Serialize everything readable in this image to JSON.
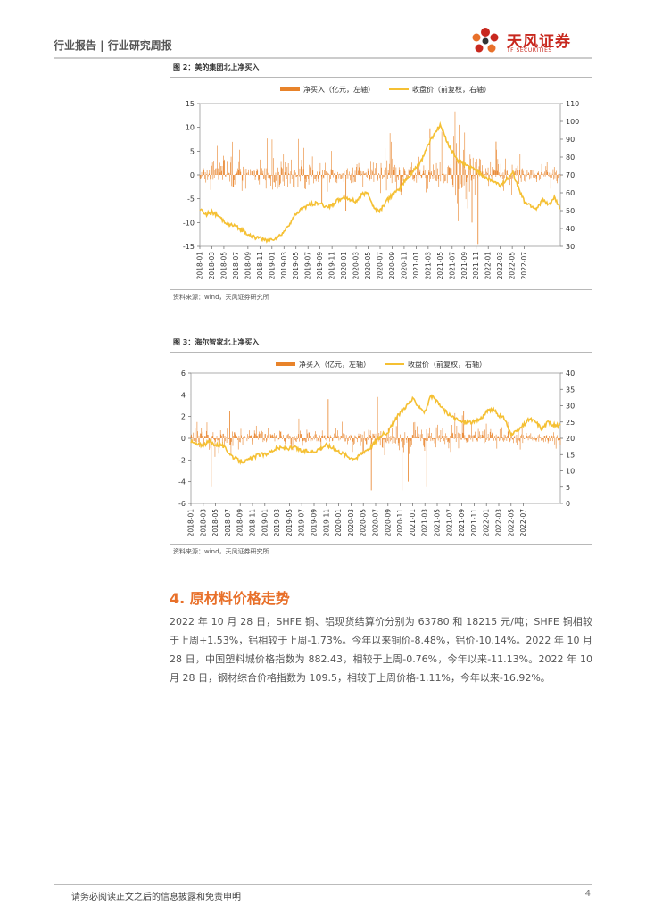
{
  "header": {
    "title": "行业报告 | 行业研究周报",
    "logo_text": "天风证券",
    "logo_sub": "TF SECURITIES"
  },
  "figures": [
    {
      "title": "图 2：美的集团北上净买入",
      "source": "资料来源：wind，天风证券研究所"
    },
    {
      "title": "图 3：海尔智家北上净买入",
      "source": "资料来源：wind，天风证券研究所"
    }
  ],
  "chart_data": [
    {
      "type": "bar",
      "title": "图 2：美的集团北上净买入",
      "legend_placement": "top-center",
      "grid": false,
      "x_ticks": [
        "2018-01",
        "2018-03",
        "2018-05",
        "2018-07",
        "2018-09",
        "2018-11",
        "2019-01",
        "2019-03",
        "2019-05",
        "2019-07",
        "2019-09",
        "2019-11",
        "2020-01",
        "2020-03",
        "2020-05",
        "2020-07",
        "2020-09",
        "2020-11",
        "2021-01",
        "2021-03",
        "2021-05",
        "2021-07",
        "2021-09",
        "2021-11",
        "2022-01",
        "2022-03",
        "2022-05",
        "2022-07"
      ],
      "y_left": {
        "min": -15,
        "max": 15,
        "ticks": [
          -15,
          -10,
          -5,
          0,
          5,
          10,
          15
        ]
      },
      "y_right": {
        "min": 30,
        "max": 110,
        "ticks": [
          30,
          40,
          50,
          60,
          70,
          80,
          90,
          100,
          110
        ]
      },
      "series": [
        {
          "name": "净买入（亿元，左轴）",
          "axis": "left",
          "kind": "bar",
          "color": "#e8832a",
          "amplitude_by_month": [
            3,
            3.5,
            4,
            4.5,
            5,
            5,
            4,
            3,
            3.5,
            4,
            4.5,
            5,
            5,
            4.5,
            4,
            4.5,
            5,
            5,
            4,
            3,
            3.5,
            3.5,
            3.5,
            3,
            3,
            2.5,
            2.5,
            2.5,
            3,
            4,
            5,
            6,
            6,
            5,
            4,
            3.5,
            3,
            3,
            4,
            5,
            6,
            7,
            9,
            8,
            6,
            5,
            4.5,
            4,
            4,
            4,
            3.5,
            3.5,
            3,
            3,
            3,
            3,
            3,
            3,
            2.5,
            2.5
          ],
          "notable_values": [
            [
              36,
              -5.5
            ],
            [
              38,
              9.8
            ],
            [
              24,
              -7.5
            ],
            [
              20,
              -6
            ],
            [
              45,
              -10
            ],
            [
              46,
              -14.5
            ],
            [
              49,
              7
            ]
          ]
        },
        {
          "name": "收盘价（前复权，右轴）",
          "axis": "right",
          "kind": "line",
          "color": "#f5c033",
          "monthly": [
            51,
            48,
            49,
            47,
            44,
            42,
            41,
            39,
            37,
            35,
            35,
            33,
            34,
            35,
            38,
            43,
            48,
            51,
            53,
            54,
            54,
            52,
            53,
            56,
            58,
            56,
            55,
            59,
            60,
            51,
            50,
            55,
            59,
            61,
            66,
            70,
            74,
            79,
            87,
            93,
            98,
            90,
            83,
            78,
            76,
            74,
            73,
            70,
            68,
            66,
            64,
            67,
            72,
            63,
            55,
            53,
            51,
            56,
            53,
            57,
            51
          ]
        }
      ]
    },
    {
      "type": "bar",
      "title": "图 3：海尔智家北上净买入",
      "legend_placement": "top-center",
      "grid": false,
      "x_ticks": [
        "2018-01",
        "2018-03",
        "2018-05",
        "2018-07",
        "2018-09",
        "2018-11",
        "2019-01",
        "2019-03",
        "2019-05",
        "2019-07",
        "2019-09",
        "2019-11",
        "2020-01",
        "2020-03",
        "2020-05",
        "2020-07",
        "2020-09",
        "2020-11",
        "2021-01",
        "2021-03",
        "2021-05",
        "2021-07",
        "2021-09",
        "2021-11",
        "2022-01",
        "2022-03",
        "2022-05",
        "2022-07"
      ],
      "y_left": {
        "min": -6,
        "max": 6,
        "ticks": [
          -6,
          -4,
          -2,
          0,
          2,
          4,
          6
        ]
      },
      "y_right": {
        "min": 0,
        "max": 40,
        "ticks": [
          0,
          5,
          10,
          15,
          20,
          25,
          30,
          35,
          40
        ]
      },
      "series": [
        {
          "name": "净买入（亿元，左轴）",
          "axis": "left",
          "kind": "bar",
          "color": "#e8832a",
          "amplitude_by_month": [
            1.2,
            1.3,
            1.4,
            1.5,
            1.5,
            1.4,
            1.2,
            1.0,
            1.0,
            1.1,
            1.2,
            1.3,
            1.3,
            1.2,
            1.0,
            1.0,
            1.1,
            1.2,
            1.2,
            1.1,
            1.0,
            1.0,
            1.0,
            1.0,
            1.0,
            1.0,
            1.1,
            1.2,
            1.3,
            1.4,
            1.5,
            1.6,
            1.6,
            1.5,
            1.4,
            1.3,
            1.2,
            1.3,
            1.4,
            1.5,
            1.6,
            1.7,
            1.8,
            1.7,
            1.5,
            1.4,
            1.3,
            1.2,
            1.2,
            1.1,
            1.1,
            1.0,
            1.0,
            1.0,
            1.0,
            1.0,
            1.0,
            1.0,
            0.9,
            0.9
          ],
          "notable_values": [
            [
              3,
              -4.5
            ],
            [
              6,
              2.5
            ],
            [
              22,
              3.6
            ],
            [
              29,
              -4.8
            ],
            [
              30,
              3.8
            ],
            [
              34,
              -4.8
            ],
            [
              35,
              -4.0
            ],
            [
              38,
              -4.5
            ],
            [
              44,
              2.5
            ]
          ]
        },
        {
          "name": "收盘价（前复权，右轴）",
          "axis": "right",
          "kind": "line",
          "color": "#f5c033",
          "monthly": [
            19,
            18,
            18,
            19,
            18,
            18,
            16,
            14,
            13,
            13,
            14,
            15,
            15,
            16,
            17,
            17,
            17,
            17,
            16,
            16,
            16,
            17,
            18,
            17,
            16,
            15,
            14,
            14,
            16,
            17,
            19,
            21,
            22,
            25,
            28,
            30,
            32,
            30,
            28,
            33,
            31,
            29,
            27,
            26,
            25,
            25,
            25,
            26,
            28,
            29,
            27,
            26,
            21,
            22,
            24,
            26,
            25,
            23,
            25,
            24,
            24
          ]
        }
      ]
    }
  ],
  "section": {
    "title": "4. 原材料价格走势",
    "paragraph": "2022 年 10 月 28 日，SHFE 铜、铝现货结算价分别为 63780 和 18215 元/吨；SHFE 铜相较于上周+1.53%，铝相较于上周-1.73%。今年以来铜价-8.48%，铝价-10.14%。2022 年 10 月 28 日，中国塑料城价格指数为 882.43，相较于上周-0.76%，今年以来-11.13%。2022 年 10 月 28 日，钢材综合价格指数为 109.5，相较于上周价格-1.11%，今年以来-16.92%。"
  },
  "footer": {
    "disclaimer": "请务必阅读正文之后的信息披露和免责申明",
    "page_number": "4"
  },
  "colors": {
    "bar": "#e8832a",
    "line": "#f5c033",
    "section_title": "#e8702a",
    "logo": "#c8281e"
  }
}
